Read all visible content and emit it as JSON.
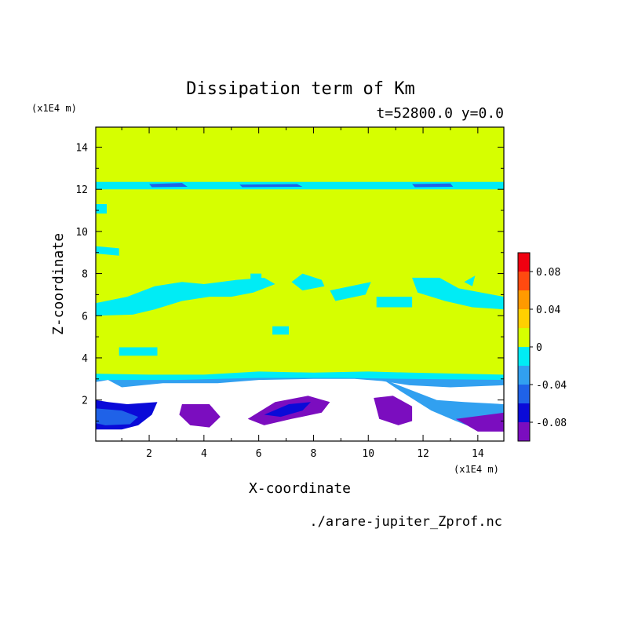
{
  "chart_data": {
    "type": "contour",
    "title": "Dissipation term of Km",
    "subtitle": "t=52800.0 y=0.0",
    "xlabel": "X-coordinate",
    "ylabel": "Z-coordinate",
    "x_unit": "(x1E4 m)",
    "y_unit": "(x1E4 m)",
    "xlim": [
      0.05,
      14.95
    ],
    "ylim": [
      0.05,
      14.95
    ],
    "x_ticks": [
      "2",
      "4",
      "6",
      "8",
      "10",
      "12",
      "14"
    ],
    "y_ticks": [
      "2",
      "4",
      "6",
      "8",
      "10",
      "12",
      "14"
    ],
    "x_tick_values": [
      2,
      4,
      6,
      8,
      10,
      12,
      14
    ],
    "y_tick_values": [
      2,
      4,
      6,
      8,
      10,
      12,
      14
    ],
    "colorbar": {
      "levels": [
        -0.1,
        -0.08,
        -0.06,
        -0.04,
        -0.02,
        0,
        0.02,
        0.04,
        0.06,
        0.08,
        0.1
      ],
      "colors": [
        "#7b0dbf",
        "#0a0ad8",
        "#1f62e8",
        "#31a0f0",
        "#00ecf5",
        "#d6ff00",
        "#ffd000",
        "#ff9a00",
        "#ff4a10",
        "#f00010",
        "#ffaaaa"
      ],
      "tick_labels": [
        "0.08",
        "0.04",
        "0",
        "-0.04",
        "-0.08"
      ],
      "tick_values": [
        0.08,
        0.04,
        0,
        -0.04,
        -0.08
      ]
    },
    "background_value": 0.01,
    "regions": [
      {
        "name": "cyan band near z=12.2",
        "value": -0.01,
        "poly": [
          [
            0.05,
            12.35
          ],
          [
            14.95,
            12.35
          ],
          [
            14.95,
            12.0
          ],
          [
            0.05,
            12.0
          ]
        ]
      },
      {
        "name": "blue streak A",
        "value": -0.05,
        "poly": [
          [
            2.0,
            12.25
          ],
          [
            3.2,
            12.3
          ],
          [
            3.4,
            12.12
          ],
          [
            2.1,
            12.1
          ]
        ]
      },
      {
        "name": "blue streak B",
        "value": -0.05,
        "poly": [
          [
            5.3,
            12.22
          ],
          [
            7.4,
            12.25
          ],
          [
            7.6,
            12.12
          ],
          [
            5.4,
            12.1
          ]
        ]
      },
      {
        "name": "blue streak C",
        "value": -0.05,
        "poly": [
          [
            11.6,
            12.25
          ],
          [
            13.0,
            12.28
          ],
          [
            13.1,
            12.12
          ],
          [
            11.7,
            12.1
          ]
        ]
      },
      {
        "name": "cyan patch 1",
        "value": -0.01,
        "poly": [
          [
            0.05,
            11.3
          ],
          [
            0.45,
            11.3
          ],
          [
            0.45,
            10.85
          ],
          [
            0.05,
            10.85
          ]
        ]
      },
      {
        "name": "cyan patch 2",
        "value": -0.01,
        "poly": [
          [
            0.05,
            9.3
          ],
          [
            0.9,
            9.2
          ],
          [
            0.9,
            8.85
          ],
          [
            0.05,
            8.95
          ]
        ]
      },
      {
        "name": "cyan wavy band",
        "value": -0.01,
        "poly": [
          [
            0.05,
            6.6
          ],
          [
            1.2,
            6.9
          ],
          [
            2.2,
            7.4
          ],
          [
            3.2,
            7.6
          ],
          [
            4.0,
            7.5
          ],
          [
            5.2,
            7.7
          ],
          [
            6.2,
            7.8
          ],
          [
            6.6,
            7.5
          ],
          [
            5.8,
            7.1
          ],
          [
            5.0,
            6.9
          ],
          [
            4.2,
            6.9
          ],
          [
            3.2,
            6.7
          ],
          [
            2.2,
            6.3
          ],
          [
            1.4,
            6.05
          ],
          [
            0.05,
            6.0
          ]
        ]
      },
      {
        "name": "cyan patch 3",
        "value": -0.01,
        "poly": [
          [
            7.6,
            8.0
          ],
          [
            8.3,
            7.7
          ],
          [
            8.4,
            7.4
          ],
          [
            7.6,
            7.2
          ],
          [
            7.2,
            7.6
          ]
        ]
      },
      {
        "name": "cyan patch 4",
        "value": -0.01,
        "poly": [
          [
            8.6,
            7.2
          ],
          [
            10.1,
            7.6
          ],
          [
            9.9,
            7.0
          ],
          [
            8.8,
            6.7
          ]
        ]
      },
      {
        "name": "cyan patch 5",
        "value": -0.01,
        "poly": [
          [
            10.3,
            6.9
          ],
          [
            11.6,
            6.9
          ],
          [
            11.6,
            6.4
          ],
          [
            10.3,
            6.4
          ]
        ]
      },
      {
        "name": "cyan patch 6",
        "value": -0.01,
        "poly": [
          [
            11.6,
            7.8
          ],
          [
            12.6,
            7.8
          ],
          [
            13.3,
            7.3
          ],
          [
            14.95,
            6.9
          ],
          [
            14.95,
            6.3
          ],
          [
            13.8,
            6.4
          ],
          [
            12.8,
            6.7
          ],
          [
            11.8,
            7.1
          ]
        ]
      },
      {
        "name": "cyan patch 7",
        "value": -0.01,
        "poly": [
          [
            0.9,
            4.5
          ],
          [
            2.3,
            4.5
          ],
          [
            2.3,
            4.1
          ],
          [
            0.9,
            4.1
          ]
        ]
      },
      {
        "name": "cyan patch 8",
        "value": -0.01,
        "poly": [
          [
            6.5,
            5.5
          ],
          [
            7.1,
            5.5
          ],
          [
            7.1,
            5.1
          ],
          [
            6.5,
            5.1
          ]
        ]
      },
      {
        "name": "cyan dot 1",
        "value": -0.01,
        "poly": [
          [
            5.7,
            8.0
          ],
          [
            6.1,
            8.0
          ],
          [
            6.1,
            7.6
          ],
          [
            5.7,
            7.6
          ]
        ]
      },
      {
        "name": "cyan dot 2",
        "value": -0.01,
        "poly": [
          [
            13.5,
            7.6
          ],
          [
            13.9,
            7.9
          ],
          [
            13.8,
            7.4
          ]
        ]
      },
      {
        "name": "lower cyan boundary",
        "value": -0.01,
        "poly": [
          [
            0.05,
            3.25
          ],
          [
            2.0,
            3.2
          ],
          [
            4.0,
            3.2
          ],
          [
            6.0,
            3.35
          ],
          [
            8.0,
            3.3
          ],
          [
            10.0,
            3.35
          ],
          [
            11.5,
            3.3
          ],
          [
            14.95,
            3.2
          ],
          [
            14.95,
            2.5
          ],
          [
            0.05,
            2.5
          ]
        ]
      },
      {
        "name": "blue boundary lines",
        "value": -0.03,
        "poly": [
          [
            0.05,
            2.95
          ],
          [
            3.0,
            2.95
          ],
          [
            6.0,
            3.05
          ],
          [
            9.0,
            3.05
          ],
          [
            11.5,
            3.0
          ],
          [
            14.95,
            2.95
          ],
          [
            14.95,
            2.6
          ],
          [
            0.05,
            2.6
          ]
        ]
      },
      {
        "name": "lower white area",
        "value": null,
        "poly": [
          [
            0.05,
            2.85
          ],
          [
            0.5,
            2.95
          ],
          [
            1.0,
            2.6
          ],
          [
            2.5,
            2.8
          ],
          [
            4.5,
            2.8
          ],
          [
            6.0,
            2.95
          ],
          [
            8.0,
            3.0
          ],
          [
            9.5,
            3.0
          ],
          [
            10.5,
            2.9
          ],
          [
            11.5,
            2.7
          ],
          [
            13.0,
            2.6
          ],
          [
            14.95,
            2.7
          ],
          [
            14.95,
            0.05
          ],
          [
            0.05,
            0.05
          ]
        ]
      },
      {
        "name": "lower-left lobe",
        "value": -0.07,
        "poly": [
          [
            0.05,
            2.0
          ],
          [
            0.5,
            1.9
          ],
          [
            1.2,
            1.8
          ],
          [
            2.3,
            1.9
          ],
          [
            2.1,
            1.3
          ],
          [
            1.6,
            0.8
          ],
          [
            1.0,
            0.6
          ],
          [
            0.05,
            0.6
          ]
        ]
      },
      {
        "name": "lower-left core",
        "value": -0.05,
        "poly": [
          [
            0.05,
            1.6
          ],
          [
            1.0,
            1.5
          ],
          [
            1.6,
            1.2
          ],
          [
            1.3,
            0.85
          ],
          [
            0.4,
            0.8
          ],
          [
            0.05,
            0.9
          ]
        ]
      },
      {
        "name": "lobe x=4",
        "value": -0.1,
        "poly": [
          [
            3.2,
            1.8
          ],
          [
            4.2,
            1.8
          ],
          [
            4.6,
            1.2
          ],
          [
            4.2,
            0.7
          ],
          [
            3.5,
            0.8
          ],
          [
            3.1,
            1.3
          ]
        ]
      },
      {
        "name": "lobe x=7",
        "value": -0.1,
        "poly": [
          [
            5.6,
            1.1
          ],
          [
            6.6,
            1.9
          ],
          [
            7.8,
            2.2
          ],
          [
            8.6,
            1.9
          ],
          [
            8.3,
            1.4
          ],
          [
            7.2,
            1.1
          ],
          [
            6.2,
            0.8
          ]
        ]
      },
      {
        "name": "lobe x=7 core",
        "value": -0.07,
        "poly": [
          [
            6.2,
            1.3
          ],
          [
            7.1,
            1.8
          ],
          [
            7.9,
            1.9
          ],
          [
            7.6,
            1.5
          ],
          [
            6.8,
            1.2
          ]
        ]
      },
      {
        "name": "lobe x=11",
        "value": -0.1,
        "poly": [
          [
            10.2,
            2.1
          ],
          [
            10.9,
            2.2
          ],
          [
            11.6,
            1.7
          ],
          [
            11.6,
            1.0
          ],
          [
            11.1,
            0.8
          ],
          [
            10.4,
            1.1
          ]
        ]
      },
      {
        "name": "lower-right feature",
        "value": -0.03,
        "poly": [
          [
            10.5,
            3.0
          ],
          [
            11.5,
            2.5
          ],
          [
            12.5,
            2.0
          ],
          [
            13.5,
            1.9
          ],
          [
            14.95,
            1.8
          ],
          [
            14.95,
            0.6
          ],
          [
            14.0,
            0.6
          ],
          [
            13.2,
            1.0
          ],
          [
            12.3,
            1.5
          ],
          [
            11.2,
            2.4
          ]
        ]
      },
      {
        "name": "lower-right core",
        "value": -0.1,
        "poly": [
          [
            13.2,
            1.1
          ],
          [
            14.95,
            1.4
          ],
          [
            14.95,
            0.5
          ],
          [
            14.0,
            0.5
          ]
        ]
      }
    ],
    "source": "./arare-jupiter_Zprof.nc",
    "grid": false,
    "legend": "colorbar-right"
  }
}
